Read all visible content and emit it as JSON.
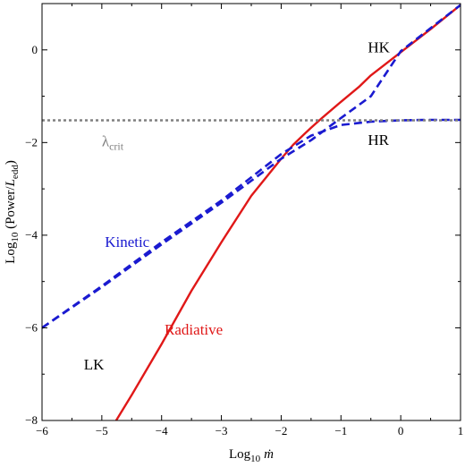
{
  "chart_data": {
    "type": "line",
    "xlabel": {
      "prefix": "Log",
      "sub": "10",
      "var": "ṁ"
    },
    "ylabel": {
      "prefix": "Log",
      "sub": "10",
      "open": " (Power/",
      "var": "L",
      "varsub": "edd",
      "close": ")"
    },
    "xlim": [
      -6,
      1
    ],
    "ylim": [
      -8,
      1
    ],
    "xticks": [
      -6,
      -5,
      -4,
      -3,
      -2,
      -1,
      0,
      1
    ],
    "yticks": [
      -8,
      -6,
      -4,
      -2,
      0
    ],
    "xtick_labels": [
      "−6",
      "−5",
      "−4",
      "−3",
      "−2",
      "−1",
      "0",
      "1"
    ],
    "ytick_labels": [
      "−8",
      "−6",
      "−4",
      "−2",
      "0"
    ],
    "grid": false,
    "colors": {
      "radiative": "#e01818",
      "kinetic": "#1a1ad0",
      "critical": "#808080"
    },
    "series": [
      {
        "name": "Radiative",
        "style": "solid",
        "color": "#e01818",
        "x": [
          -4.76,
          -4.5,
          -4.0,
          -3.5,
          -3.0,
          -2.5,
          -2.0,
          -1.8,
          -1.6,
          -1.5,
          -1.3,
          -1.0,
          -0.7,
          -0.5,
          0.0,
          0.5,
          1.0
        ],
        "y": [
          -8.0,
          -7.45,
          -6.35,
          -5.2,
          -4.15,
          -3.15,
          -2.35,
          -2.05,
          -1.8,
          -1.68,
          -1.45,
          -1.12,
          -0.8,
          -0.55,
          -0.05,
          0.45,
          0.97
        ]
      },
      {
        "name": "Kinetic",
        "style": "dashed",
        "color": "#1a1ad0",
        "x": [
          -6.0,
          -5.0,
          -4.0,
          -3.0,
          -2.0,
          -1.5,
          -1.0,
          -0.5,
          0.0,
          0.5,
          1.0
        ],
        "y": [
          -6.0,
          -5.12,
          -4.2,
          -3.3,
          -2.35,
          -1.95,
          -1.47,
          -1.0,
          -0.03,
          0.47,
          0.97
        ]
      },
      {
        "name": "",
        "style": "dashed",
        "color": "#1a1ad0",
        "x": [
          -6.0,
          -5.0,
          -4.0,
          -3.0,
          -2.0,
          -1.5,
          -1.0,
          -0.5,
          0.0,
          0.5,
          1.0
        ],
        "y": [
          -6.0,
          -5.1,
          -4.15,
          -3.25,
          -2.25,
          -1.85,
          -1.62,
          -1.55,
          -1.52,
          -1.51,
          -1.51
        ]
      },
      {
        "name": "λcrit",
        "style": "dotted",
        "color": "#808080",
        "x": [
          -6.0,
          1.0
        ],
        "y": [
          -1.52,
          -1.52
        ]
      }
    ],
    "annotations": [
      {
        "text": "HK",
        "x": -0.55,
        "y": -0.05,
        "color": "#000000"
      },
      {
        "text": "HR",
        "x": -0.55,
        "y": -2.05,
        "color": "#000000"
      },
      {
        "text": "LK",
        "x": -5.3,
        "y": -6.9,
        "color": "#000000"
      },
      {
        "text": "Kinetic",
        "x": -4.95,
        "y": -4.25,
        "color": "#1a1ad0"
      },
      {
        "text": "Radiative",
        "x": -3.95,
        "y": -6.15,
        "color": "#e01818"
      },
      {
        "text": "λ",
        "sub": "crit",
        "x": -5.0,
        "y": -2.08,
        "color": "#808080"
      }
    ]
  }
}
